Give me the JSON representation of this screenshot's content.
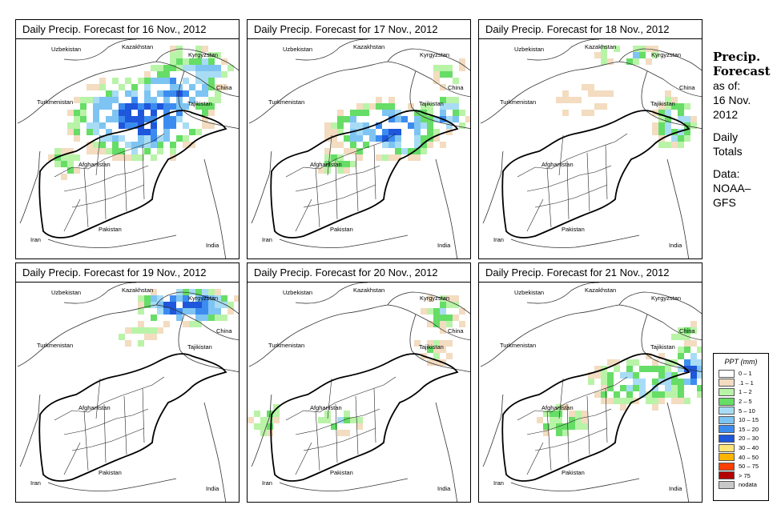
{
  "panels": [
    {
      "title": "Daily Precip. Forecast for  16 Nov., 2012",
      "day": "16"
    },
    {
      "title": "Daily Precip. Forecast for  17 Nov., 2012",
      "day": "17"
    },
    {
      "title": "Daily Precip. Forecast for  18 Nov., 2012",
      "day": "18"
    },
    {
      "title": "Daily Precip. Forecast for  19 Nov., 2012",
      "day": "19"
    },
    {
      "title": "Daily Precip. Forecast for  20 Nov., 2012",
      "day": "20"
    },
    {
      "title": "Daily Precip. Forecast for  21 Nov., 2012",
      "day": "21"
    }
  ],
  "country_labels": {
    "kazakhstan": "Kazakhstan",
    "uzbekistan": "Uzbekistan",
    "kyrgyzstan": "Kyrgyzstan",
    "turkmenistan": "Turkmenistan",
    "china": "China",
    "tajikistan": "Tajikistan",
    "afghanistan": "Afghanistan",
    "iran": "Iran",
    "pakistan": "Pakistan",
    "india": "India"
  },
  "side_info": {
    "title_line1": "Precip.",
    "title_line2": "Forecast",
    "as_of": "as of:",
    "date_line1": "16 Nov.",
    "date_line2": "2012",
    "totals_line1": "Daily",
    "totals_line2": "Totals",
    "data_line1": "Data:",
    "data_line2": "NOAA–",
    "data_line3": "GFS"
  },
  "legend": {
    "title": "PPT (mm)",
    "items": [
      {
        "label": "0 – 1",
        "color": "#ffffff"
      },
      {
        "label": ".1 – 1",
        "color": "#f3dcc0"
      },
      {
        "label": "1 – 2",
        "color": "#b9f3a8"
      },
      {
        "label": "2 – 5",
        "color": "#66dd66"
      },
      {
        "label": "5 – 10",
        "color": "#a8dcf5"
      },
      {
        "label": "10 – 15",
        "color": "#7ec4f2"
      },
      {
        "label": "15 – 20",
        "color": "#3c8cf0"
      },
      {
        "label": "20 – 30",
        "color": "#1e56dc"
      },
      {
        "label": "30 – 40",
        "color": "#ffe47a"
      },
      {
        "label": "40 – 50",
        "color": "#ffb400"
      },
      {
        "label": "50 – 75",
        "color": "#ff4000"
      },
      {
        "label": "> 75",
        "color": "#b40000"
      },
      {
        "label": "nodata",
        "color": "#c8c8c8"
      }
    ]
  }
}
